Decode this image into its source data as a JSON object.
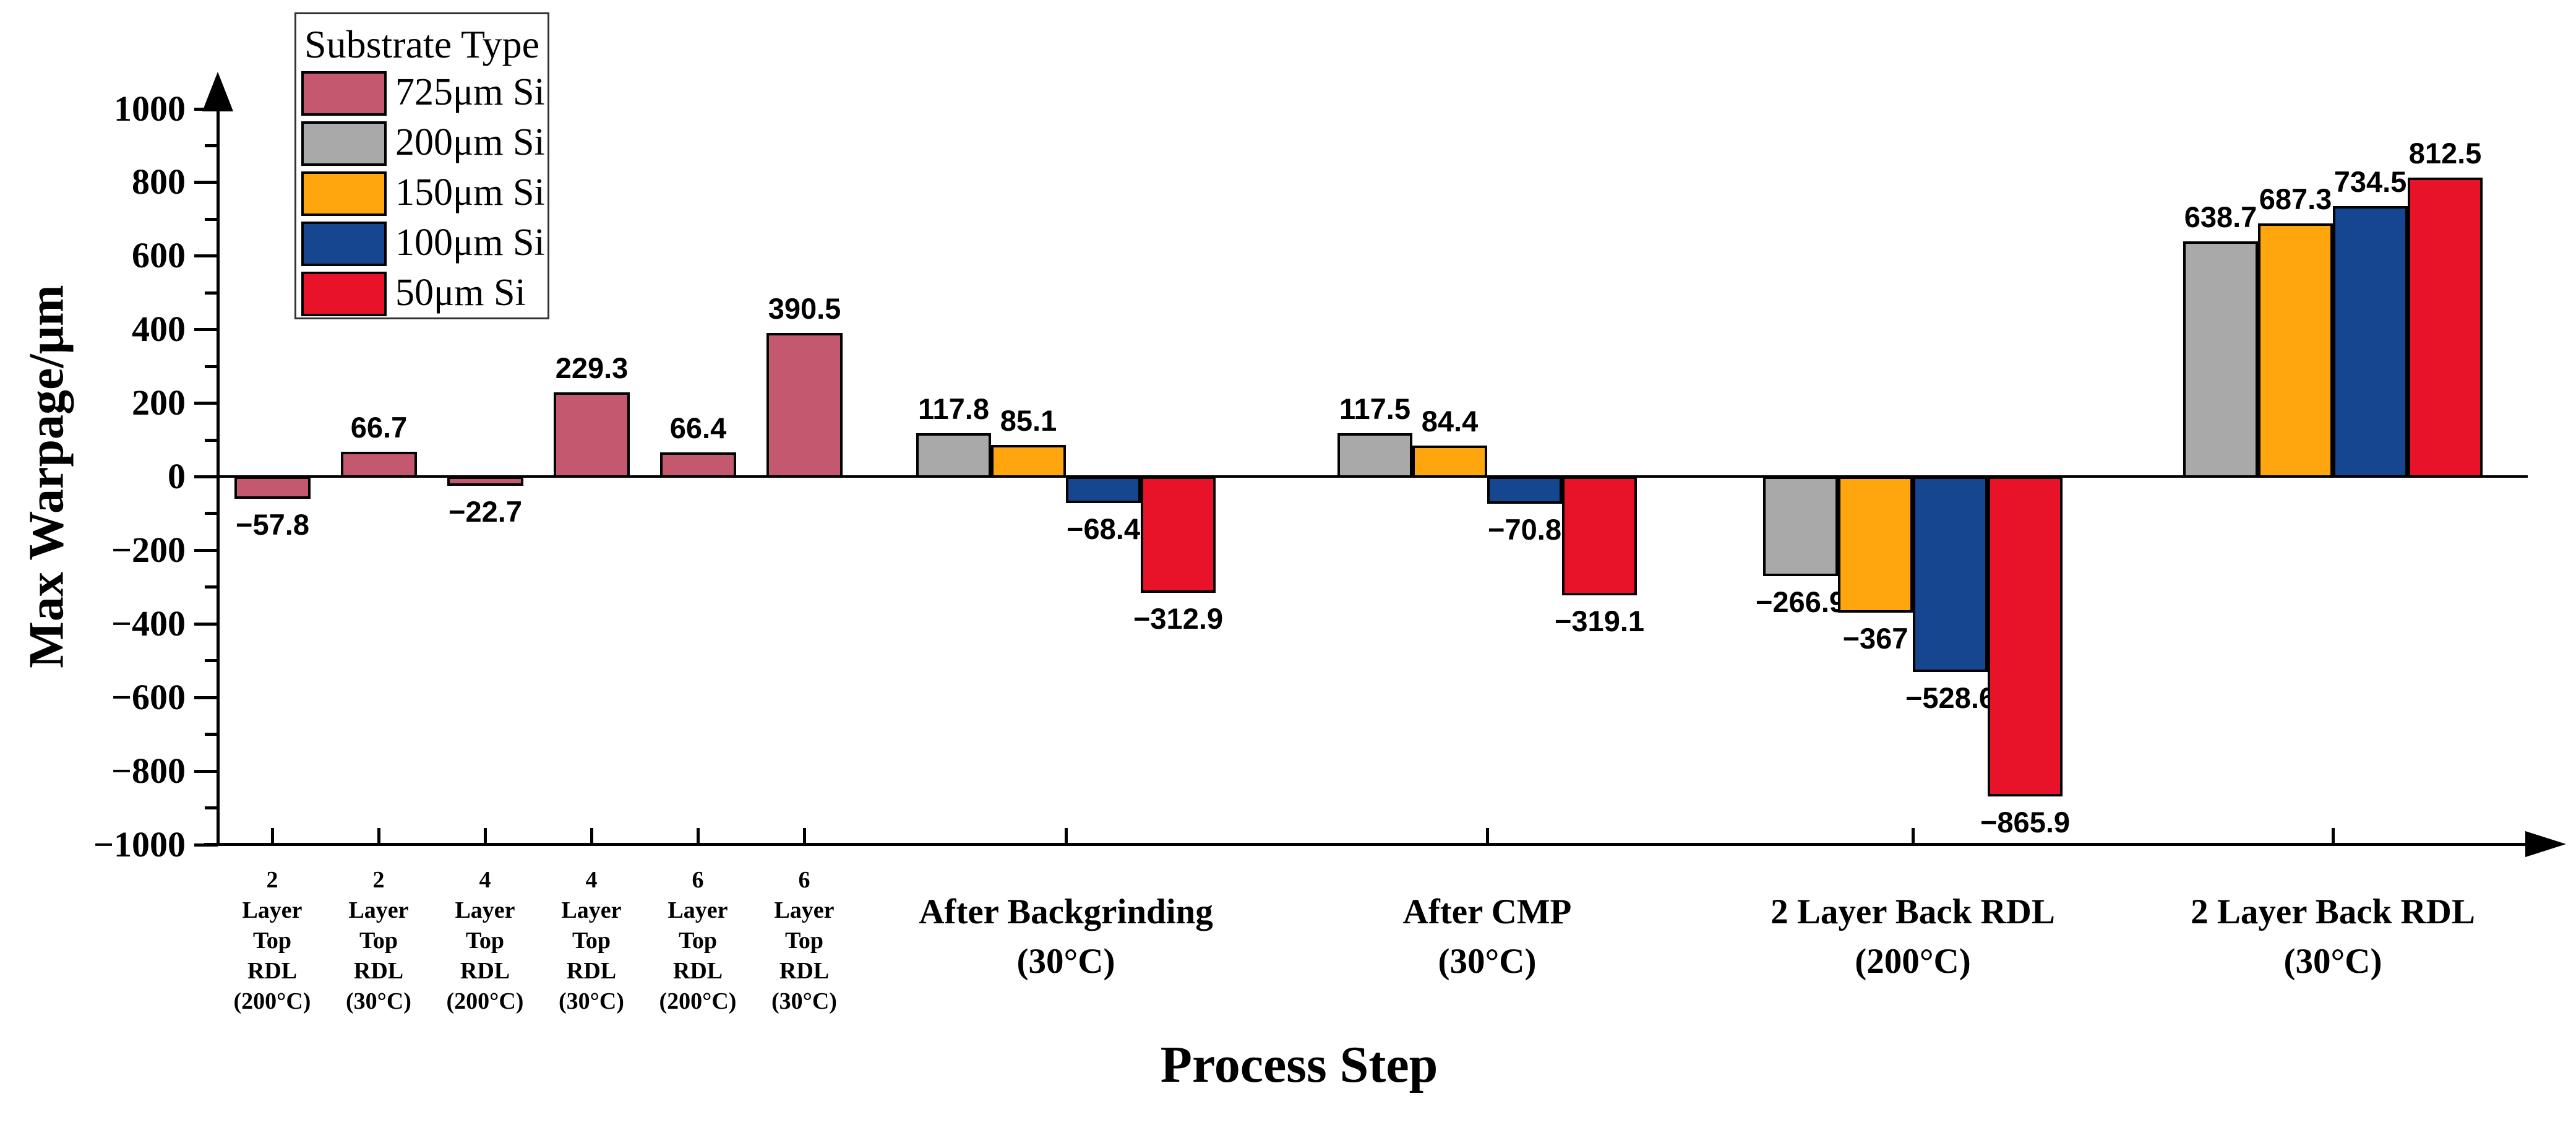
{
  "chart_data": {
    "type": "bar",
    "title": "",
    "xlabel": "Process Step",
    "ylabel": "Max Warpage/μm",
    "ylim": [
      -1000,
      1000
    ],
    "ytick_major_step": 200,
    "ytick_minor_step": 100,
    "grid": false,
    "legend_position": "top-left",
    "legend_title": "Substrate Type",
    "series": [
      {
        "name": "725μm Si",
        "color": "#C4586E"
      },
      {
        "name": "200μm Si",
        "color": "#A9A9A9"
      },
      {
        "name": "150μm Si",
        "color": "#FFA60F"
      },
      {
        "name": "100μm Si",
        "color": "#16468F"
      },
      {
        "name": "50μm Si",
        "color": "#E91329"
      }
    ],
    "groups": [
      {
        "label_size": "small",
        "category_lines": [
          "2",
          "Layer",
          "Top",
          "RDL",
          "(200°C)"
        ],
        "bars": [
          {
            "series": 0,
            "value": -57.8,
            "label": "−57.8"
          }
        ]
      },
      {
        "label_size": "small",
        "category_lines": [
          "2",
          "Layer",
          "Top",
          "RDL",
          "(30°C)"
        ],
        "bars": [
          {
            "series": 0,
            "value": 66.7,
            "label": "66.7"
          }
        ]
      },
      {
        "label_size": "small",
        "category_lines": [
          "4",
          "Layer",
          "Top",
          "RDL",
          "(200°C)"
        ],
        "bars": [
          {
            "series": 0,
            "value": -22.7,
            "label": "−22.7"
          }
        ]
      },
      {
        "label_size": "small",
        "category_lines": [
          "4",
          "Layer",
          "Top",
          "RDL",
          "(30°C)"
        ],
        "bars": [
          {
            "series": 0,
            "value": 229.3,
            "label": "229.3"
          }
        ]
      },
      {
        "label_size": "small",
        "category_lines": [
          "6",
          "Layer",
          "Top",
          "RDL",
          "(200°C)"
        ],
        "bars": [
          {
            "series": 0,
            "value": 66.4,
            "label": "66.4"
          }
        ]
      },
      {
        "label_size": "small",
        "category_lines": [
          "6",
          "Layer",
          "Top",
          "RDL",
          "(30°C)"
        ],
        "bars": [
          {
            "series": 0,
            "value": 390.5,
            "label": "390.5"
          }
        ]
      },
      {
        "label_size": "large",
        "category_lines": [
          "After Backgrinding",
          "(30°C)"
        ],
        "bars": [
          {
            "series": 1,
            "value": 117.8,
            "label": "117.8"
          },
          {
            "series": 2,
            "value": 85.1,
            "label": "85.1"
          },
          {
            "series": 3,
            "value": -68.4,
            "label": "−68.4"
          },
          {
            "series": 4,
            "value": -312.9,
            "label": "−312.9"
          }
        ]
      },
      {
        "label_size": "large",
        "category_lines": [
          "After CMP",
          "(30°C)"
        ],
        "bars": [
          {
            "series": 1,
            "value": 117.5,
            "label": "117.5"
          },
          {
            "series": 2,
            "value": 84.4,
            "label": "84.4"
          },
          {
            "series": 3,
            "value": -70.8,
            "label": "−70.8"
          },
          {
            "series": 4,
            "value": -319.1,
            "label": "−319.1"
          }
        ]
      },
      {
        "label_size": "large",
        "category_lines": [
          "2 Layer Back RDL",
          "(200°C)"
        ],
        "bars": [
          {
            "series": 1,
            "value": -266.9,
            "label": "−266.9"
          },
          {
            "series": 2,
            "value": -367,
            "label": "−367"
          },
          {
            "series": 3,
            "value": -528.6,
            "label": "−528.6"
          },
          {
            "series": 4,
            "value": -865.9,
            "label": "−865.9"
          }
        ]
      },
      {
        "label_size": "large",
        "category_lines": [
          "2 Layer Back RDL",
          "(30°C)"
        ],
        "bars": [
          {
            "series": 1,
            "value": 638.7,
            "label": "638.7"
          },
          {
            "series": 2,
            "value": 687.3,
            "label": "687.3"
          },
          {
            "series": 3,
            "value": 734.5,
            "label": "734.5"
          },
          {
            "series": 4,
            "value": 812.5,
            "label": "812.5"
          }
        ]
      }
    ]
  }
}
